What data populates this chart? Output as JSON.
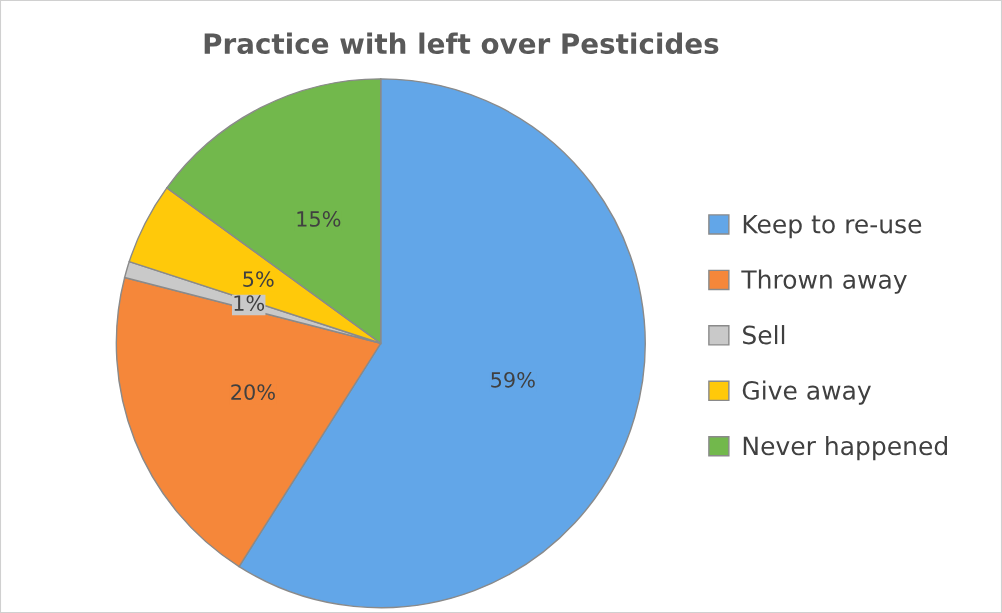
{
  "chart_data": {
    "type": "pie",
    "title": "Practice with left over Pesticides",
    "categories": [
      "Keep to re-use",
      "Thrown away",
      "Sell",
      "Give away",
      "Never happened"
    ],
    "values": [
      59,
      20,
      1,
      5,
      15
    ],
    "colors": [
      "#62a6e8",
      "#f5873a",
      "#c9c9c9",
      "#ffc90a",
      "#72b84c"
    ],
    "value_labels": [
      "59%",
      "20%",
      "1%",
      "5%",
      "15%"
    ],
    "legend": "right"
  }
}
